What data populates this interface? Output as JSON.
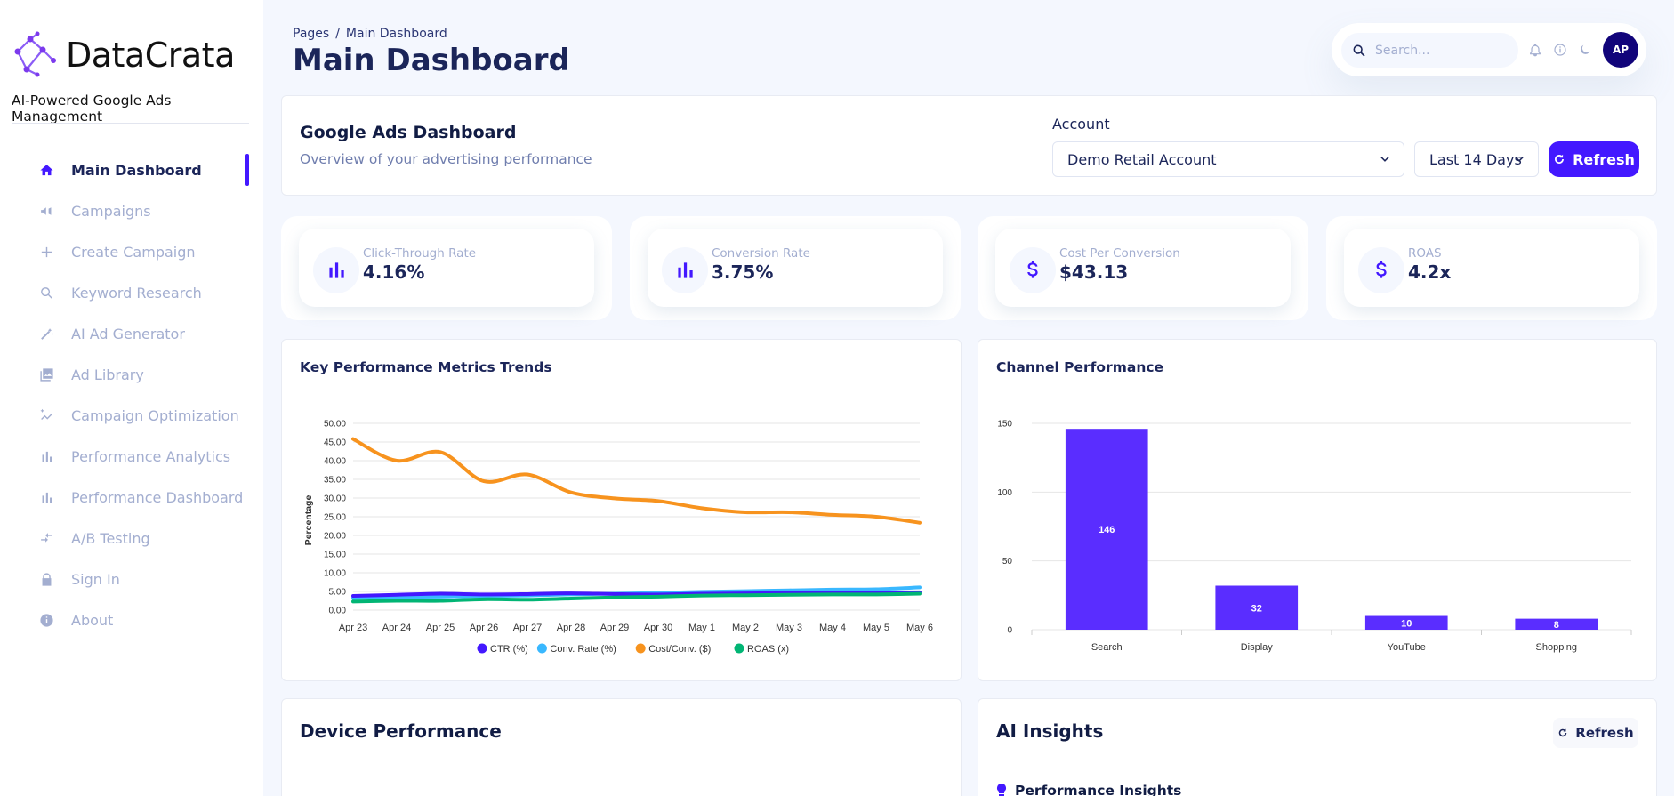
{
  "app": {
    "name": "DataCrata",
    "tagline": "AI-Powered Google Ads Management"
  },
  "sidebar": {
    "items": [
      {
        "label": "Main Dashboard",
        "icon": "home-icon",
        "active": true
      },
      {
        "label": "Campaigns",
        "icon": "megaphone-icon"
      },
      {
        "label": "Create Campaign",
        "icon": "plus-icon"
      },
      {
        "label": "Keyword Research",
        "icon": "search-icon"
      },
      {
        "label": "AI Ad Generator",
        "icon": "magic-wand-icon"
      },
      {
        "label": "Ad Library",
        "icon": "image-library-icon"
      },
      {
        "label": "Campaign Optimization",
        "icon": "trend-icon"
      },
      {
        "label": "Performance Analytics",
        "icon": "bar-chart-icon"
      },
      {
        "label": "Performance Dashboard",
        "icon": "bar-chart-icon"
      },
      {
        "label": "A/B Testing",
        "icon": "compare-arrows-icon"
      },
      {
        "label": "Sign In",
        "icon": "lock-icon"
      },
      {
        "label": "About",
        "icon": "info-icon"
      }
    ]
  },
  "header": {
    "breadcrumb_root": "Pages",
    "breadcrumb_sep": "/",
    "breadcrumb_current": "Main Dashboard",
    "title": "Main Dashboard",
    "search_placeholder": "Search...",
    "avatar_initials": "AP"
  },
  "ads": {
    "title": "Google Ads Dashboard",
    "subtitle": "Overview of your advertising performance",
    "account_label": "Account",
    "account_value": "Demo Retail Account",
    "range_value": "Last 14 Days",
    "refresh_label": "Refresh"
  },
  "stats": [
    {
      "label": "Click-Through Rate",
      "value": "4.16%",
      "icon": "bar-chart-icon"
    },
    {
      "label": "Conversion Rate",
      "value": "3.75%",
      "icon": "bar-chart-icon"
    },
    {
      "label": "Cost Per Conversion",
      "value": "$43.13",
      "icon": "dollar-icon"
    },
    {
      "label": "ROAS",
      "value": "4.2x",
      "icon": "dollar-icon"
    }
  ],
  "kpm": {
    "title": "Key Performance Metrics Trends"
  },
  "channel": {
    "title": "Channel Performance"
  },
  "device": {
    "title": "Device Performance"
  },
  "ai": {
    "title": "AI Insights",
    "refresh_label": "Refresh",
    "section_title": "Performance Insights"
  },
  "colors": {
    "accent": "#4318ff",
    "navy": "#1b2559",
    "muted": "#a3aed0"
  },
  "chart_data": [
    {
      "type": "line",
      "title": "Key Performance Metrics Trends",
      "xlabel": "",
      "ylabel": "Percentage",
      "ylim": [
        0,
        50
      ],
      "yticks": [
        0,
        5,
        10,
        15,
        20,
        25,
        30,
        35,
        40,
        45,
        50
      ],
      "categories": [
        "Apr 23",
        "Apr 24",
        "Apr 25",
        "Apr 26",
        "Apr 27",
        "Apr 28",
        "Apr 29",
        "Apr 30",
        "May 1",
        "May 2",
        "May 3",
        "May 4",
        "May 5",
        "May 6"
      ],
      "legend_position": "bottom",
      "series": [
        {
          "name": "CTR (%)",
          "color": "#4318ff",
          "values": [
            3.8,
            4.1,
            4.4,
            4.2,
            4.3,
            4.5,
            4.3,
            4.2,
            4.4,
            4.5,
            4.6,
            4.6,
            4.7,
            4.8
          ]
        },
        {
          "name": "Conv. Rate (%)",
          "color": "#39b8ff",
          "values": [
            3.2,
            3.5,
            3.6,
            3.8,
            3.9,
            4.2,
            4.4,
            4.6,
            4.9,
            5.1,
            5.3,
            5.5,
            5.6,
            6.1
          ]
        },
        {
          "name": "Cost/Conv. ($)",
          "color": "#f7931e",
          "values": [
            45.8,
            40.0,
            42.3,
            34.5,
            36.3,
            31.5,
            29.9,
            29.2,
            27.3,
            26.2,
            26.2,
            25.5,
            25.0,
            23.4
          ]
        },
        {
          "name": "ROAS (x)",
          "color": "#01b574",
          "values": [
            2.3,
            2.5,
            2.5,
            2.9,
            2.8,
            3.1,
            3.4,
            3.6,
            3.9,
            4.0,
            4.1,
            4.2,
            4.2,
            4.4
          ]
        }
      ]
    },
    {
      "type": "bar",
      "title": "Channel Performance",
      "categories": [
        "Search",
        "Display",
        "YouTube",
        "Shopping"
      ],
      "values": [
        146,
        32,
        10,
        8
      ],
      "ylim": [
        0,
        150
      ],
      "yticks": [
        0,
        50,
        100,
        150
      ],
      "color": "#5a2dff"
    }
  ]
}
